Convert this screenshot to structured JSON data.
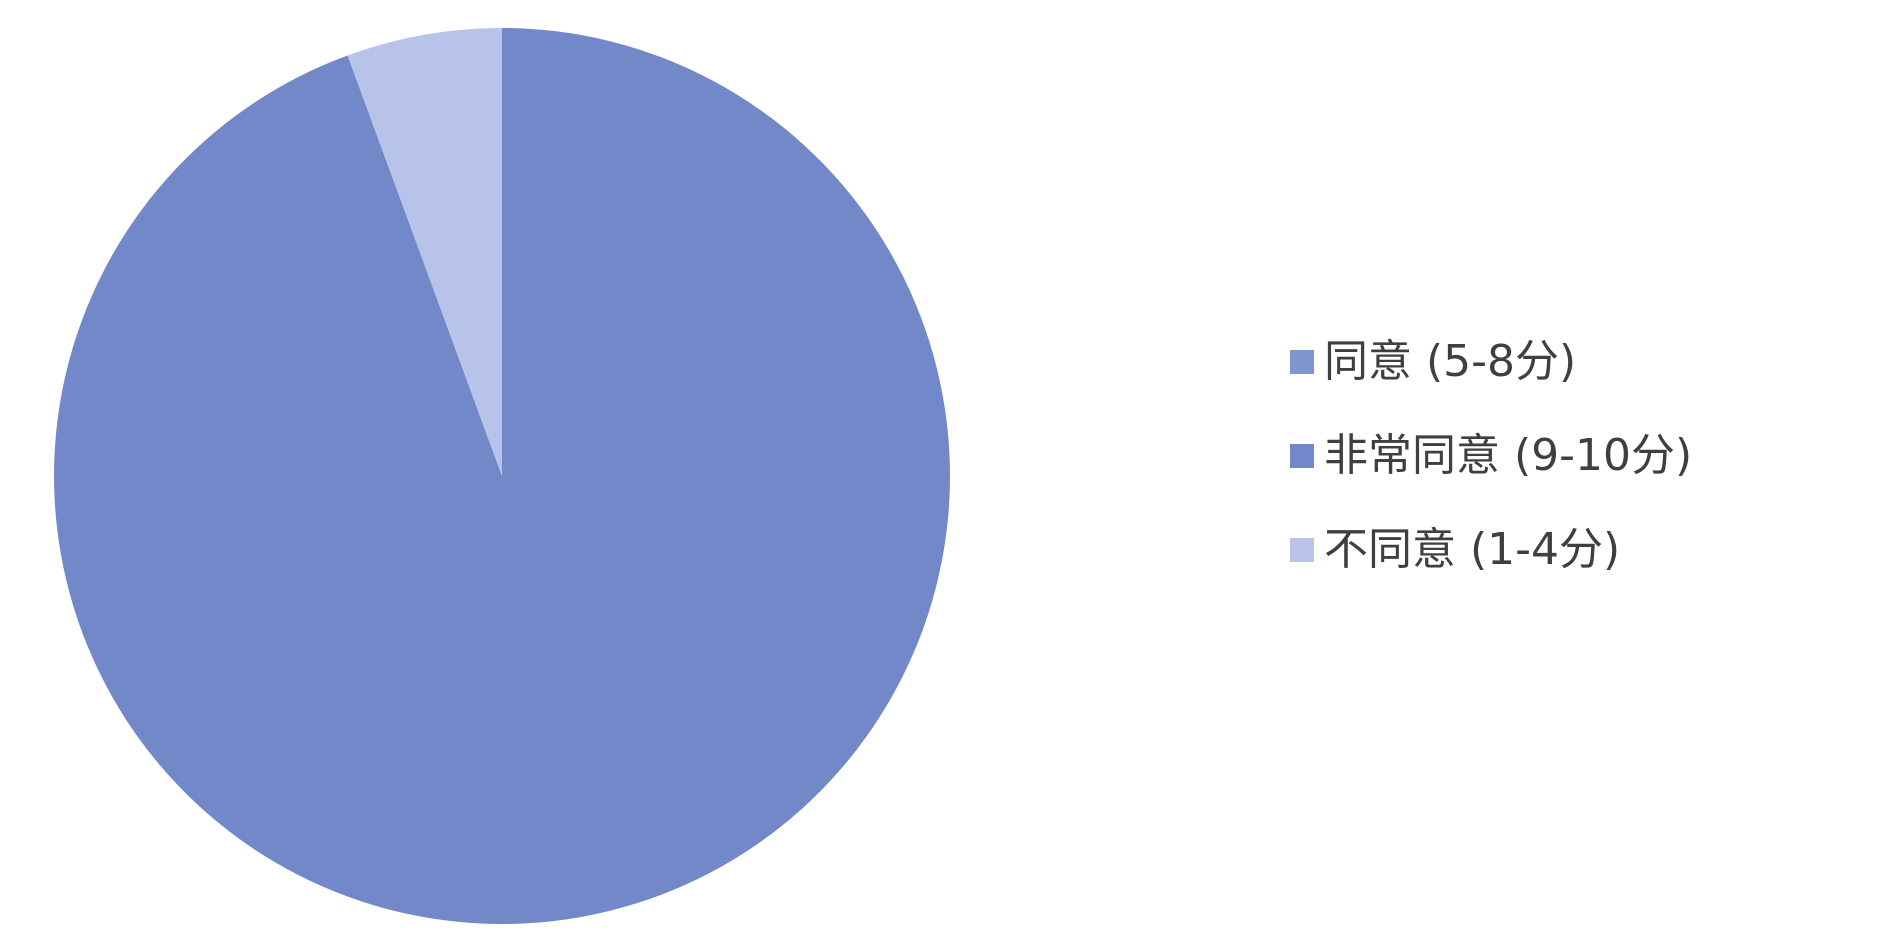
{
  "chart_data": {
    "type": "pie",
    "title": "",
    "categories": [
      "同意 (5-8分)",
      "非常同意 (9-10分)",
      "不同意 (1-4分)"
    ],
    "values": [
      0,
      94.4,
      5.6
    ],
    "unit": "%",
    "legend_position": "right",
    "colors": [
      "#7f95ce",
      "#7288c8",
      "#b7c3e8"
    ]
  },
  "legend": {
    "items": [
      {
        "label": "同意 (5-8分)",
        "color": "#7f95ce"
      },
      {
        "label": "非常同意 (9-10分)",
        "color": "#7288c8"
      },
      {
        "label": "不同意 (1-4分)",
        "color": "#b7c3e8"
      }
    ]
  }
}
